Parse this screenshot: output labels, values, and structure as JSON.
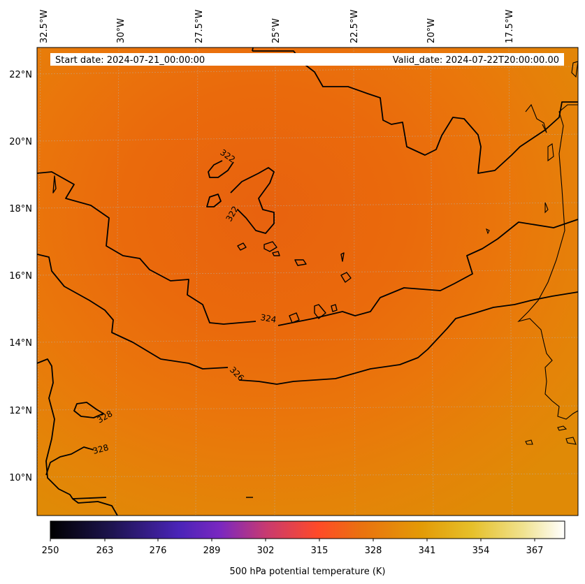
{
  "header": {
    "start_date": "Start date: 2024-07-21_00:00:00",
    "valid_date": "Valid_date: 2024-07-22T20:00:00.00"
  },
  "map": {
    "lon_labels": [
      "32.5°W",
      "30°W",
      "27.5°W",
      "25°W",
      "22.5°W",
      "20°W",
      "17.5°W"
    ],
    "lat_labels": [
      "22°N",
      "20°N",
      "18°N",
      "16°N",
      "14°N",
      "12°N",
      "10°N"
    ],
    "contour_labels": [
      "322",
      "322",
      "324",
      "326",
      "328",
      "328"
    ],
    "colors": {
      "field_dark": "#e8650d",
      "field_mid": "#ea700c",
      "field_light": "#e38a08",
      "contour": "#000000"
    }
  },
  "colorbar": {
    "ticks": [
      "250",
      "263",
      "276",
      "289",
      "302",
      "315",
      "328",
      "341",
      "354",
      "367"
    ],
    "label": "500 hPa potential temperature (K)",
    "cmap": [
      "#000000",
      "#2a1a6a",
      "#5a2ad0",
      "#9a30b0",
      "#d83a60",
      "#ff4a20",
      "#e8720e",
      "#e39d06",
      "#e8c830",
      "#f2e8a0",
      "#ffffff"
    ]
  }
}
